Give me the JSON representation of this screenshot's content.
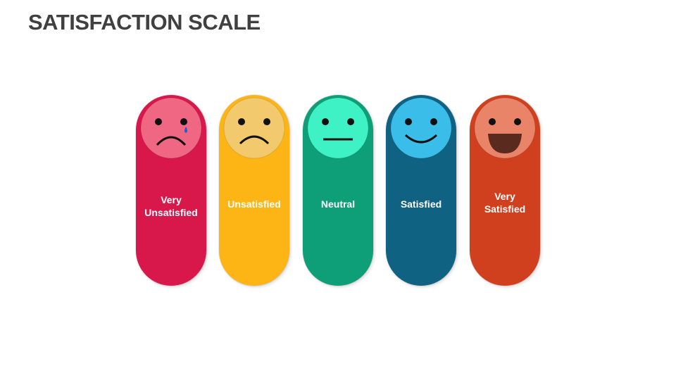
{
  "header": {
    "title": "SATISFACTION SCALE"
  },
  "scale": {
    "items": [
      {
        "label": "Very Unsatisfied"
      },
      {
        "label": "Unsatisfied"
      },
      {
        "label": "Neutral"
      },
      {
        "label": "Satisfied"
      },
      {
        "label": "Very Satisfied"
      }
    ]
  }
}
